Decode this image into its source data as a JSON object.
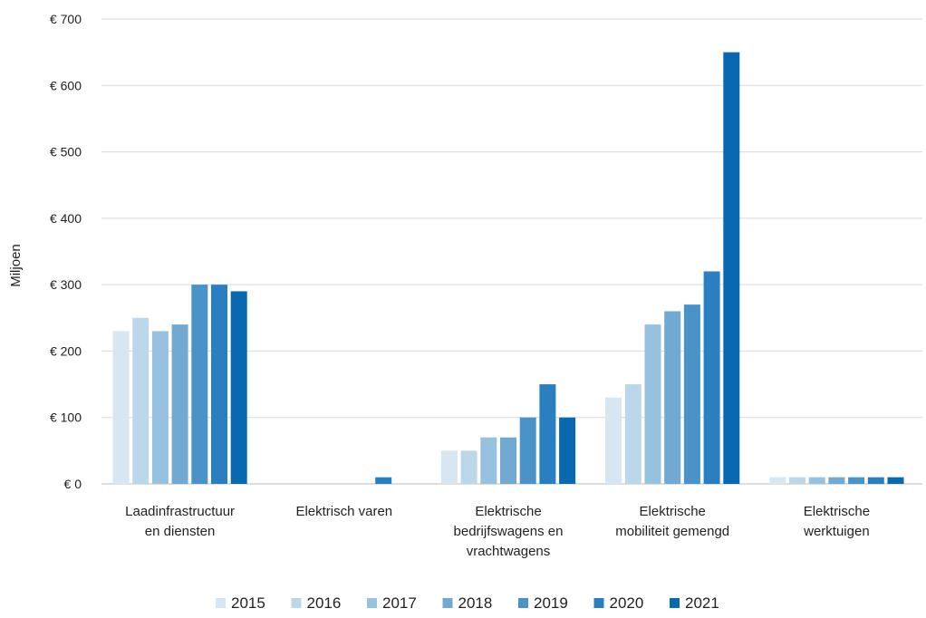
{
  "chart_data": {
    "type": "bar",
    "ylabel": "Miljoen",
    "ylim": [
      0,
      700
    ],
    "yticks": [
      0,
      100,
      200,
      300,
      400,
      500,
      600,
      700
    ],
    "ytick_labels": [
      "€ 0",
      "€ 100",
      "€ 200",
      "€ 300",
      "€ 400",
      "€ 500",
      "€ 600",
      "€ 700"
    ],
    "grid": true,
    "legend_position": "bottom",
    "categories": [
      [
        "Laadinfrastructuur",
        "en diensten"
      ],
      [
        "Elektrisch varen"
      ],
      [
        "Elektrische",
        "bedrijfswagens en",
        "vrachtwagens"
      ],
      [
        "Elektrische",
        "mobiliteit gemengd"
      ],
      [
        "Elektrische",
        "werktuigen"
      ]
    ],
    "series": [
      {
        "name": "2015",
        "color": "#d6e6f2",
        "values": [
          230,
          0,
          50,
          130,
          10
        ]
      },
      {
        "name": "2016",
        "color": "#bcd7ea",
        "values": [
          250,
          0,
          50,
          150,
          10
        ]
      },
      {
        "name": "2017",
        "color": "#96c1df",
        "values": [
          230,
          0,
          70,
          240,
          10
        ]
      },
      {
        "name": "2018",
        "color": "#72a9d3",
        "values": [
          240,
          0,
          70,
          260,
          10
        ]
      },
      {
        "name": "2019",
        "color": "#4a93c9",
        "values": [
          300,
          0,
          100,
          270,
          10
        ]
      },
      {
        "name": "2020",
        "color": "#2a7fc0",
        "values": [
          300,
          10,
          150,
          320,
          10
        ]
      },
      {
        "name": "2021",
        "color": "#0868b0",
        "values": [
          290,
          0,
          100,
          650,
          10
        ]
      }
    ]
  }
}
